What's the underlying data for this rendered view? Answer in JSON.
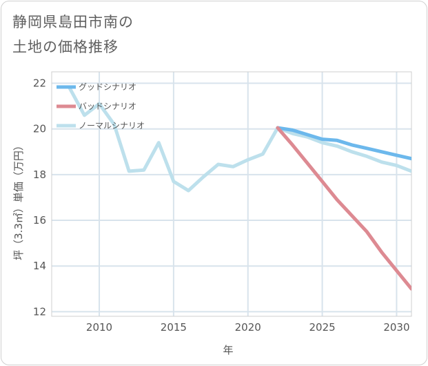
{
  "title": {
    "line1": "静岡県島田市南の",
    "line2": "土地の価格推移"
  },
  "chart_data": {
    "type": "line",
    "title": "静岡県島田市南の土地の価格推移",
    "xlabel": "年",
    "ylabel": "坪（3.3㎡）単価（万円）",
    "xlim": [
      2006.8,
      2031
    ],
    "ylim": [
      11.8,
      22.5
    ],
    "xticks": [
      2010,
      2015,
      2020,
      2025,
      2030
    ],
    "yticks": [
      12,
      14,
      16,
      18,
      20,
      22
    ],
    "grid": true,
    "legend_position": "top-left",
    "series": [
      {
        "name": "グッドシナリオ",
        "color": "#6cb8ec",
        "x": [
          2022,
          2023,
          2024,
          2025,
          2026,
          2027,
          2028,
          2029,
          2030,
          2031
        ],
        "y": [
          20.05,
          19.95,
          19.75,
          19.55,
          19.5,
          19.3,
          19.15,
          19.0,
          18.85,
          18.7
        ]
      },
      {
        "name": "バッドシナリオ",
        "color": "#dd8a92",
        "x": [
          2022,
          2023,
          2024,
          2025,
          2026,
          2027,
          2028,
          2029,
          2030,
          2031
        ],
        "y": [
          20.05,
          19.3,
          18.5,
          17.7,
          16.9,
          16.2,
          15.5,
          14.6,
          13.8,
          13.0
        ]
      },
      {
        "name": "ノーマルシナリオ",
        "color": "#bde0ec",
        "x": [
          2008,
          2009,
          2010,
          2011,
          2012,
          2013,
          2014,
          2015,
          2016,
          2017,
          2018,
          2019,
          2020,
          2021,
          2022,
          2023,
          2024,
          2025,
          2026,
          2027,
          2028,
          2029,
          2030,
          2031
        ],
        "y": [
          21.8,
          20.6,
          21.1,
          20.2,
          18.15,
          18.2,
          19.4,
          17.7,
          17.3,
          17.9,
          18.45,
          18.35,
          18.65,
          18.9,
          20.05,
          19.8,
          19.65,
          19.4,
          19.25,
          19.0,
          18.8,
          18.55,
          18.4,
          18.15
        ]
      }
    ]
  }
}
